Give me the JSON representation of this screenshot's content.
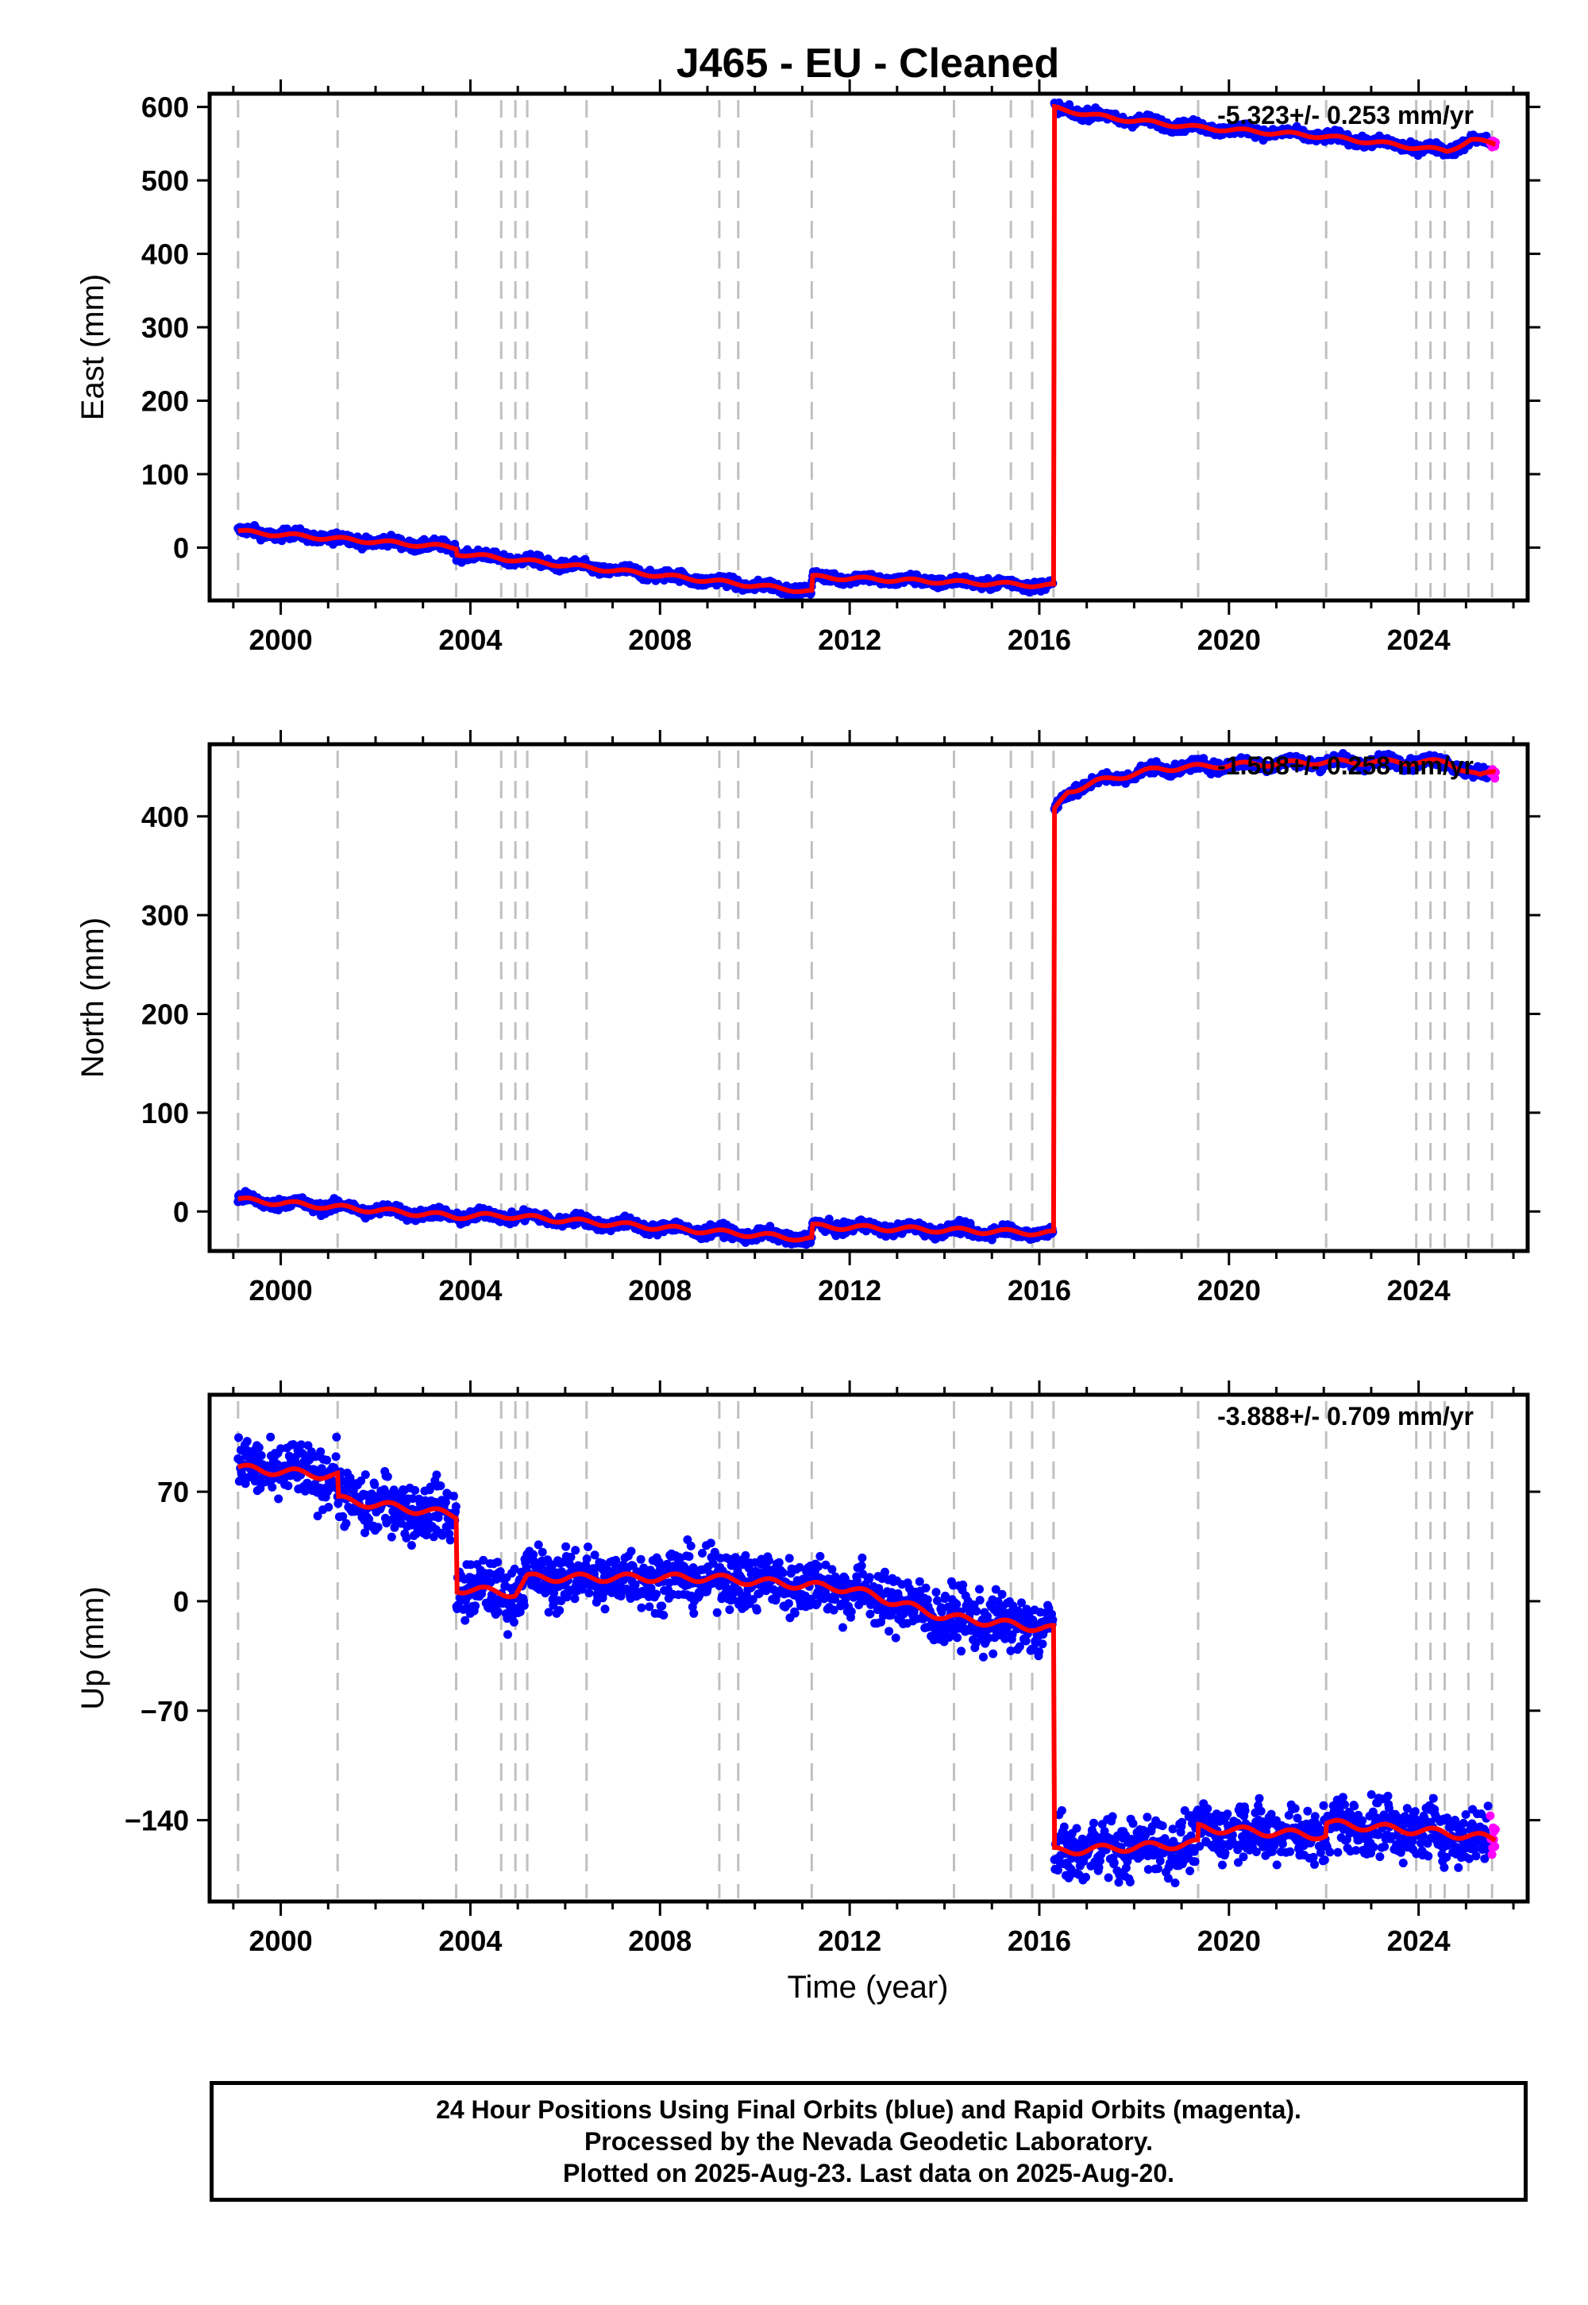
{
  "title": "J465  - EU - Cleaned",
  "x_axis": {
    "label": "Time (year)",
    "ticks": [
      "2000",
      "2004",
      "2008",
      "2012",
      "2016",
      "2020",
      "2024"
    ]
  },
  "footer": [
    "24 Hour Positions Using Final Orbits (blue) and Rapid Orbits (magenta).",
    "Processed by the Nevada Geodetic Laboratory.",
    "Plotted on 2025-Aug-23. Last data on 2025-Aug-20."
  ],
  "colors": {
    "final_orbits": "#0000ff",
    "rapid_orbits": "#ff00ff",
    "model": "#ff0000",
    "event_lines": "#c0c0c0"
  },
  "chart_data": [
    {
      "type": "scatter",
      "panel": "east",
      "ylabel": "East (mm)",
      "xlim": [
        1998.5,
        2026.3
      ],
      "ylim": [
        -72,
        618
      ],
      "yticks": [
        0,
        100,
        200,
        300,
        400,
        500,
        600
      ],
      "rate_text": "-5.323+/- 0.253 mm/yr",
      "event_lines": [
        1999.1,
        2001.2,
        2003.7,
        2004.65,
        2004.95,
        2005.2,
        2006.45,
        2009.25,
        2009.65,
        2011.2,
        2014.2,
        2015.4,
        2015.85,
        2016.3,
        2019.35,
        2022.05,
        2023.95,
        2024.25,
        2024.55,
        2025.05,
        2025.55
      ],
      "model": [
        [
          1999.1,
          22
        ],
        [
          2003.7,
          0
        ],
        [
          2003.71,
          -8
        ],
        [
          2011.2,
          -60
        ],
        [
          2011.21,
          -40
        ],
        [
          2016.3,
          -52
        ],
        [
          2016.31,
          598
        ],
        [
          2017.5,
          585
        ],
        [
          2019.35,
          572
        ],
        [
          2022,
          560
        ],
        [
          2024.6,
          540
        ],
        [
          2025.1,
          555
        ],
        [
          2025.6,
          550
        ]
      ],
      "noise_mm": 5
    },
    {
      "type": "scatter",
      "panel": "north",
      "ylabel": "North (mm)",
      "xlim": [
        1998.5,
        2026.3
      ],
      "ylim": [
        -40,
        473
      ],
      "yticks": [
        0,
        100,
        200,
        300,
        400
      ],
      "rate_text": "-1.508+/- 0.258 mm/yr",
      "event_lines": [
        1999.1,
        2001.2,
        2003.7,
        2004.65,
        2004.95,
        2005.2,
        2006.45,
        2009.25,
        2009.65,
        2011.2,
        2014.2,
        2015.4,
        2015.85,
        2016.3,
        2019.35,
        2022.05,
        2023.95,
        2024.25,
        2024.55,
        2025.05,
        2025.55
      ],
      "model": [
        [
          1999.1,
          12
        ],
        [
          2003.7,
          -5
        ],
        [
          2004.65,
          -4
        ],
        [
          2011.2,
          -28
        ],
        [
          2011.21,
          -15
        ],
        [
          2016.3,
          -22
        ],
        [
          2016.31,
          405
        ],
        [
          2016.6,
          425
        ],
        [
          2017.2,
          435
        ],
        [
          2018.5,
          448
        ],
        [
          2020,
          452
        ],
        [
          2022,
          455
        ],
        [
          2024.6,
          455
        ],
        [
          2025.3,
          440
        ],
        [
          2025.6,
          446
        ]
      ],
      "noise_mm": 4
    },
    {
      "type": "scatter",
      "panel": "up",
      "ylabel": "Up (mm)",
      "xlim": [
        1998.5,
        2026.3
      ],
      "ylim": [
        -192,
        132
      ],
      "yticks": [
        70,
        0,
        -70,
        -140
      ],
      "yticklabels": [
        "70",
        "0",
        "−70",
        "−140"
      ],
      "rate_text": "-3.888+/- 0.709 mm/yr",
      "event_lines": [
        1999.1,
        2001.2,
        2003.7,
        2004.65,
        2004.95,
        2005.2,
        2006.45,
        2009.25,
        2009.65,
        2011.2,
        2014.2,
        2015.4,
        2015.85,
        2016.3,
        2019.35,
        2022.05,
        2023.95,
        2024.25,
        2024.55,
        2025.05,
        2025.55
      ],
      "model": [
        [
          1999.1,
          85
        ],
        [
          2001.2,
          80
        ],
        [
          2001.21,
          65
        ],
        [
          2003.7,
          55
        ],
        [
          2003.71,
          8
        ],
        [
          2004.95,
          5
        ],
        [
          2005.2,
          15
        ],
        [
          2009,
          15
        ],
        [
          2012,
          8
        ],
        [
          2014,
          -10
        ],
        [
          2016.3,
          -18
        ],
        [
          2016.31,
          -160
        ],
        [
          2019.35,
          -155
        ],
        [
          2019.36,
          -145
        ],
        [
          2022.05,
          -150
        ],
        [
          2022.06,
          -142
        ],
        [
          2024.5,
          -148
        ],
        [
          2025.6,
          -152
        ]
      ],
      "noise_mm": 13
    }
  ]
}
